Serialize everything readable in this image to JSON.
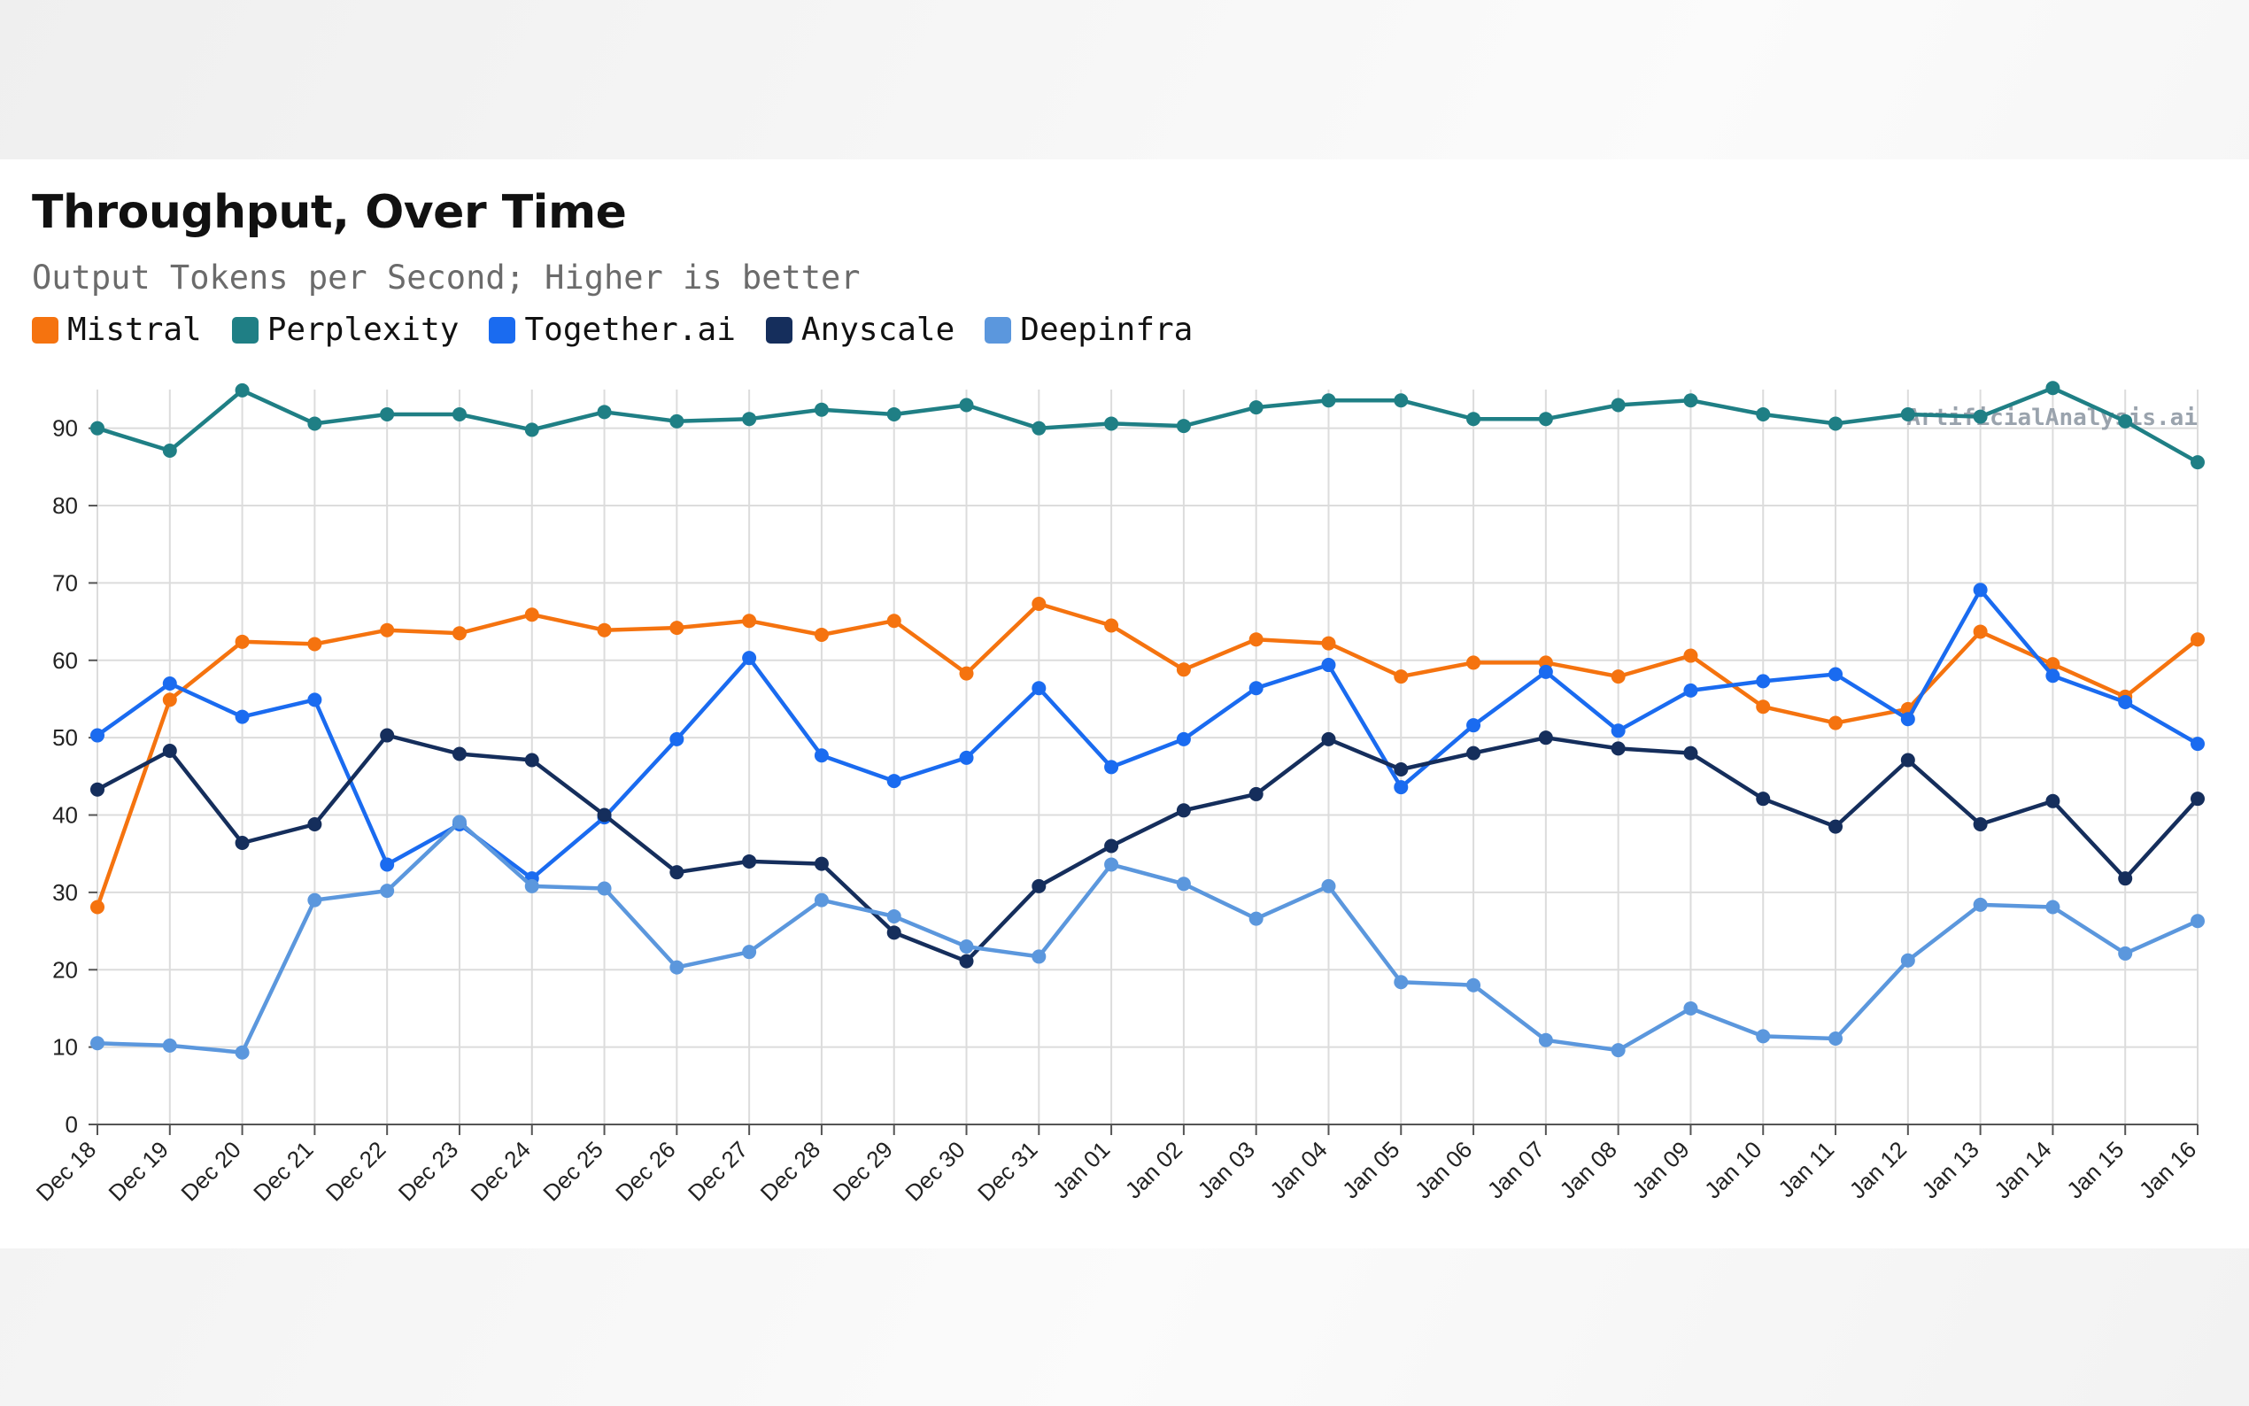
{
  "chart_data": {
    "type": "line",
    "title": "Throughput, Over Time",
    "subtitle": "Output Tokens per Second; Higher is better",
    "watermark": "ArtificialAnalysis.ai",
    "xlabel": "",
    "ylabel": "",
    "ylim": [
      0,
      95
    ],
    "yticks": [
      0,
      10,
      20,
      30,
      40,
      50,
      60,
      70,
      80,
      90
    ],
    "grid": true,
    "legend_position": "top-left",
    "categories": [
      "Dec 18",
      "Dec 19",
      "Dec 20",
      "Dec 21",
      "Dec 22",
      "Dec 23",
      "Dec 24",
      "Dec 25",
      "Dec 26",
      "Dec 27",
      "Dec 28",
      "Dec 29",
      "Dec 30",
      "Dec 31",
      "Jan 01",
      "Jan 02",
      "Jan 03",
      "Jan 04",
      "Jan 05",
      "Jan 06",
      "Jan 07",
      "Jan 08",
      "Jan 09",
      "Jan 10",
      "Jan 11",
      "Jan 12",
      "Jan 13",
      "Jan 14",
      "Jan 15",
      "Jan 16"
    ],
    "series": [
      {
        "name": "Mistral",
        "color": "#f5730f",
        "values": [
          28.1,
          54.9,
          62.4,
          62.1,
          63.9,
          63.5,
          65.9,
          63.9,
          64.2,
          65.1,
          63.3,
          65.1,
          58.3,
          67.3,
          64.5,
          58.8,
          62.7,
          62.2,
          57.9,
          59.7,
          59.7,
          57.9,
          60.6,
          54.0,
          51.9,
          53.7,
          63.7,
          59.5,
          55.3,
          62.7
        ]
      },
      {
        "name": "Perplexity",
        "color": "#1f7f85",
        "values": [
          90.0,
          87.1,
          94.9,
          90.6,
          91.8,
          91.8,
          89.8,
          92.1,
          90.9,
          91.2,
          92.4,
          91.8,
          93.0,
          90.0,
          90.6,
          90.3,
          92.7,
          93.6,
          93.6,
          91.2,
          91.2,
          93.0,
          93.6,
          91.8,
          90.6,
          91.8,
          91.5,
          95.2,
          90.9,
          85.6
        ]
      },
      {
        "name": "Together.ai",
        "color": "#1a6bf0",
        "values": [
          50.3,
          57.0,
          52.7,
          54.9,
          33.6,
          38.8,
          31.8,
          39.7,
          49.8,
          60.3,
          47.7,
          44.4,
          47.4,
          56.4,
          46.2,
          49.8,
          56.4,
          59.4,
          43.6,
          51.6,
          58.5,
          50.9,
          56.1,
          57.3,
          58.2,
          52.4,
          69.1,
          58.0,
          54.6,
          49.2
        ]
      },
      {
        "name": "Anyscale",
        "color": "#152e5c",
        "values": [
          43.3,
          48.3,
          36.4,
          38.8,
          50.3,
          47.9,
          47.1,
          40.0,
          32.6,
          34.0,
          33.7,
          24.8,
          21.1,
          30.8,
          36.0,
          40.6,
          42.7,
          49.8,
          45.9,
          48.0,
          50.0,
          48.6,
          48.0,
          42.1,
          38.5,
          47.1,
          38.8,
          41.8,
          31.8,
          42.1
        ]
      },
      {
        "name": "Deepinfra",
        "color": "#5b97dd",
        "values": [
          10.5,
          10.2,
          9.3,
          29.0,
          30.2,
          39.1,
          30.8,
          30.5,
          20.3,
          22.3,
          29.0,
          26.9,
          23.0,
          21.7,
          33.6,
          31.1,
          26.6,
          30.8,
          18.4,
          18.0,
          10.9,
          9.6,
          15.0,
          11.4,
          11.1,
          21.2,
          28.4,
          28.1,
          22.1,
          26.3
        ]
      }
    ]
  }
}
